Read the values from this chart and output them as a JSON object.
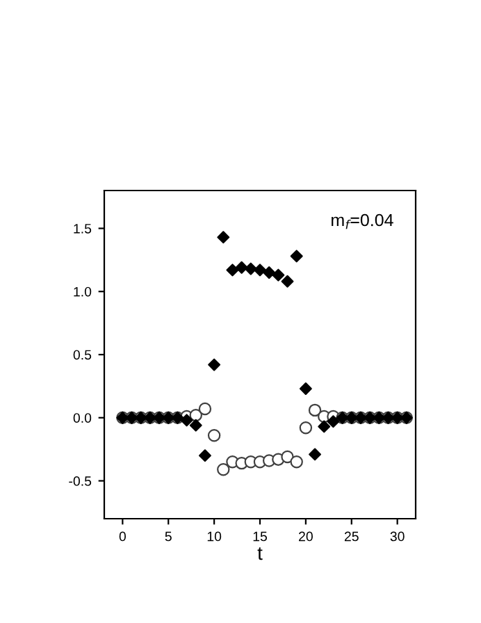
{
  "chart_data": {
    "type": "scatter",
    "xlabel": "t",
    "x": [
      0,
      1,
      2,
      3,
      4,
      5,
      6,
      7,
      8,
      9,
      10,
      11,
      12,
      13,
      14,
      15,
      16,
      17,
      18,
      19,
      20,
      21,
      22,
      23,
      24,
      25,
      26,
      27,
      28,
      29,
      30,
      31
    ],
    "series": [
      {
        "color": "#000000",
        "marker": "diamond",
        "values": [
          0,
          0,
          0,
          0,
          0,
          0,
          0,
          -0.02,
          -0.06,
          -0.3,
          0.42,
          1.43,
          1.17,
          1.19,
          1.18,
          1.17,
          1.15,
          1.13,
          1.08,
          1.28,
          0.23,
          -0.29,
          -0.07,
          -0.03,
          0,
          0,
          0,
          0,
          0,
          0,
          0,
          0
        ]
      },
      {
        "color": "#404040",
        "marker": "circle",
        "values": [
          0,
          0,
          0,
          0,
          0,
          0,
          0,
          0.01,
          0.02,
          0.07,
          -0.14,
          -0.41,
          -0.35,
          -0.36,
          -0.35,
          -0.35,
          -0.34,
          -0.33,
          -0.31,
          -0.35,
          -0.08,
          0.06,
          0.01,
          0.01,
          0,
          0,
          0,
          0,
          0,
          0,
          0,
          0
        ]
      }
    ],
    "xlim": [
      -2,
      32
    ],
    "ylim": [
      -0.8,
      1.8
    ],
    "xticks": [
      0,
      5,
      10,
      15,
      20,
      25,
      30
    ],
    "yticks": [
      {
        "value": -0.5,
        "label": "-0.5"
      },
      {
        "value": 0,
        "label": "0.0"
      },
      {
        "value": 0.5,
        "label": "0.5"
      },
      {
        "value": 1,
        "label": "1.0"
      },
      {
        "value": 1.5,
        "label": "1.5"
      }
    ],
    "annotations": [
      "m$_{f}$=0.04"
    ],
    "grid": false,
    "legend": false
  }
}
